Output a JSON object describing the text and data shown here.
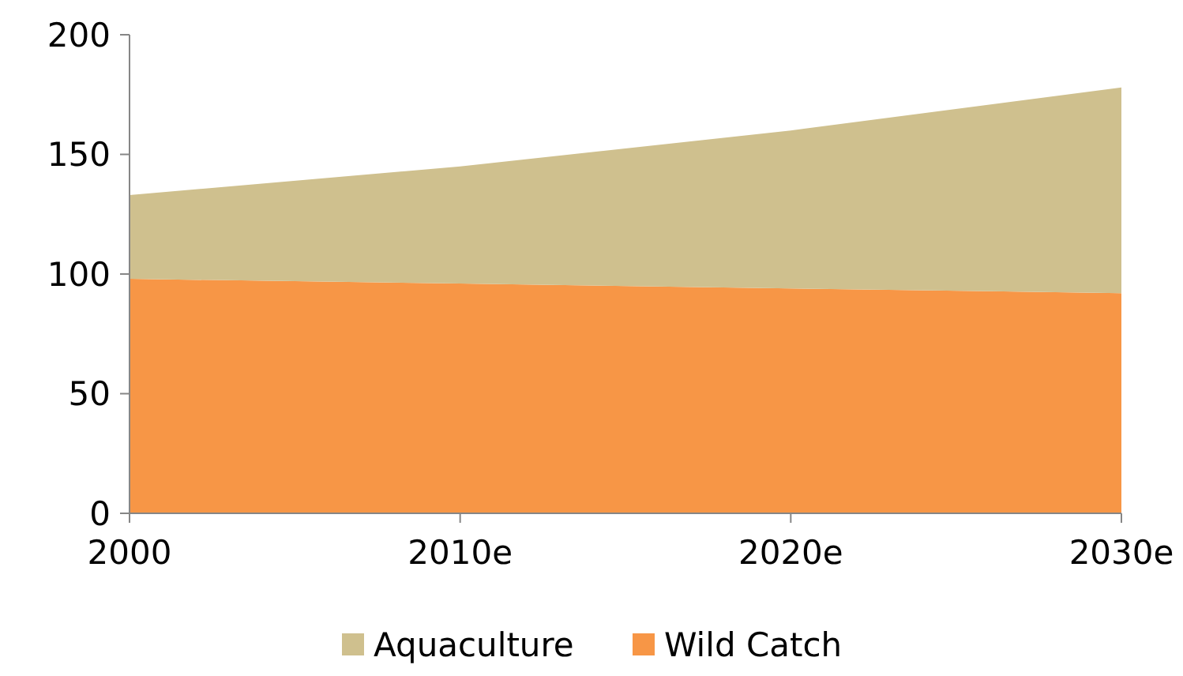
{
  "chart_data": {
    "type": "area",
    "stacked": true,
    "categories": [
      "2000",
      "2010e",
      "2020e",
      "2030e"
    ],
    "series": [
      {
        "name": "Wild Catch",
        "color": "#f79646",
        "values": [
          98,
          96,
          94,
          92
        ]
      },
      {
        "name": "Aquaculture",
        "color": "#cfc08e",
        "values": [
          35,
          49,
          66,
          86
        ]
      }
    ],
    "ylim": [
      0,
      200
    ],
    "yticks": [
      0,
      50,
      100,
      150,
      200
    ],
    "grid": false,
    "legend": "bottom"
  }
}
